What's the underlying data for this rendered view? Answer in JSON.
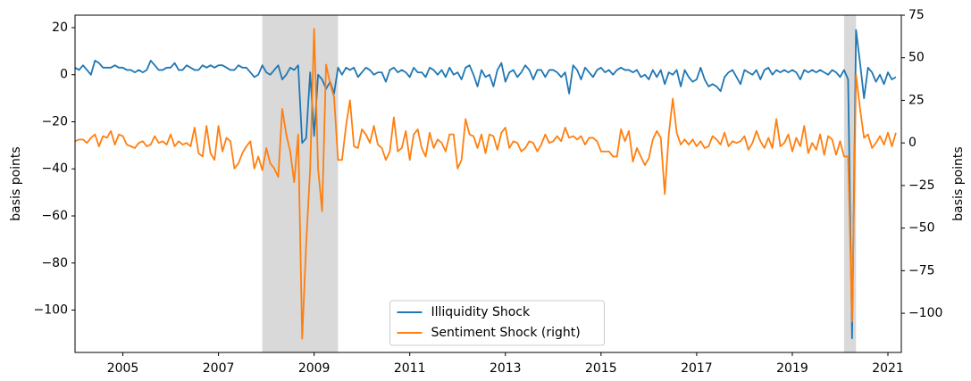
{
  "chart_data": {
    "type": "line",
    "ylabel": "basis points",
    "y2label": "basis points",
    "x": [
      2004.0,
      2004.083,
      2004.167,
      2004.25,
      2004.333,
      2004.417,
      2004.5,
      2004.583,
      2004.667,
      2004.75,
      2004.833,
      2004.917,
      2005.0,
      2005.083,
      2005.167,
      2005.25,
      2005.333,
      2005.417,
      2005.5,
      2005.583,
      2005.667,
      2005.75,
      2005.833,
      2005.917,
      2006.0,
      2006.083,
      2006.167,
      2006.25,
      2006.333,
      2006.417,
      2006.5,
      2006.583,
      2006.667,
      2006.75,
      2006.833,
      2006.917,
      2007.0,
      2007.083,
      2007.167,
      2007.25,
      2007.333,
      2007.417,
      2007.5,
      2007.583,
      2007.667,
      2007.75,
      2007.833,
      2007.917,
      2008.0,
      2008.083,
      2008.167,
      2008.25,
      2008.333,
      2008.417,
      2008.5,
      2008.583,
      2008.667,
      2008.75,
      2008.833,
      2008.917,
      2009.0,
      2009.083,
      2009.167,
      2009.25,
      2009.333,
      2009.417,
      2009.5,
      2009.583,
      2009.667,
      2009.75,
      2009.833,
      2009.917,
      2010.0,
      2010.083,
      2010.167,
      2010.25,
      2010.333,
      2010.417,
      2010.5,
      2010.583,
      2010.667,
      2010.75,
      2010.833,
      2010.917,
      2011.0,
      2011.083,
      2011.167,
      2011.25,
      2011.333,
      2011.417,
      2011.5,
      2011.583,
      2011.667,
      2011.75,
      2011.833,
      2011.917,
      2012.0,
      2012.083,
      2012.167,
      2012.25,
      2012.333,
      2012.417,
      2012.5,
      2012.583,
      2012.667,
      2012.75,
      2012.833,
      2012.917,
      2013.0,
      2013.083,
      2013.167,
      2013.25,
      2013.333,
      2013.417,
      2013.5,
      2013.583,
      2013.667,
      2013.75,
      2013.833,
      2013.917,
      2014.0,
      2014.083,
      2014.167,
      2014.25,
      2014.333,
      2014.417,
      2014.5,
      2014.583,
      2014.667,
      2014.75,
      2014.833,
      2014.917,
      2015.0,
      2015.083,
      2015.167,
      2015.25,
      2015.333,
      2015.417,
      2015.5,
      2015.583,
      2015.667,
      2015.75,
      2015.833,
      2015.917,
      2016.0,
      2016.083,
      2016.167,
      2016.25,
      2016.333,
      2016.417,
      2016.5,
      2016.583,
      2016.667,
      2016.75,
      2016.833,
      2016.917,
      2017.0,
      2017.083,
      2017.167,
      2017.25,
      2017.333,
      2017.417,
      2017.5,
      2017.583,
      2017.667,
      2017.75,
      2017.833,
      2017.917,
      2018.0,
      2018.083,
      2018.167,
      2018.25,
      2018.333,
      2018.417,
      2018.5,
      2018.583,
      2018.667,
      2018.75,
      2018.833,
      2018.917,
      2019.0,
      2019.083,
      2019.167,
      2019.25,
      2019.333,
      2019.417,
      2019.5,
      2019.583,
      2019.667,
      2019.75,
      2019.833,
      2019.917,
      2020.0,
      2020.083,
      2020.167,
      2020.25,
      2020.333,
      2020.417,
      2020.5,
      2020.583,
      2020.667,
      2020.75,
      2020.833,
      2020.917,
      2021.0,
      2021.083,
      2021.167
    ],
    "series": [
      {
        "name": "Illiquidity Shock",
        "color": "#1f77b4",
        "axis": "y",
        "values": [
          3,
          2,
          4,
          2,
          0,
          6,
          5,
          3,
          3,
          3,
          4,
          3,
          3,
          2,
          2,
          1,
          2,
          1,
          2,
          6,
          4,
          2,
          2,
          3,
          3,
          5,
          2,
          2,
          4,
          3,
          2,
          2,
          4,
          3,
          4,
          3,
          4,
          4,
          3,
          2,
          2,
          4,
          3,
          3,
          1,
          -1,
          0,
          4,
          1,
          0,
          2,
          4,
          -2,
          0,
          3,
          2,
          4,
          -29,
          -27,
          1,
          -26,
          0,
          -2,
          -6,
          -3,
          -8,
          3,
          0,
          3,
          2,
          3,
          -1,
          1,
          3,
          2,
          0,
          1,
          1,
          -3,
          2,
          3,
          1,
          2,
          1,
          -1,
          3,
          1,
          1,
          -1,
          3,
          2,
          0,
          2,
          -1,
          3,
          0,
          1,
          -2,
          3,
          4,
          0,
          -5,
          2,
          -1,
          0,
          -5,
          2,
          5,
          -3,
          1,
          2,
          -1,
          1,
          4,
          2,
          -2,
          2,
          2,
          -1,
          2,
          2,
          1,
          -1,
          1,
          -8,
          4,
          2,
          -2,
          3,
          1,
          -1,
          2,
          3,
          1,
          2,
          0,
          2,
          3,
          2,
          2,
          1,
          2,
          -1,
          0,
          -2,
          2,
          -1,
          2,
          -4,
          1,
          0,
          2,
          -5,
          2,
          -1,
          -3,
          -2,
          3,
          -2,
          -5,
          -4,
          -5,
          -7,
          -1,
          1,
          2,
          -1,
          -4,
          2,
          1,
          0,
          2,
          -2,
          2,
          3,
          0,
          2,
          1,
          2,
          1,
          2,
          1,
          -2,
          2,
          1,
          2,
          1,
          2,
          1,
          0,
          2,
          1,
          -1,
          2,
          -2,
          -112,
          19,
          5,
          -10,
          3,
          1,
          -3,
          0,
          -4,
          1,
          -2,
          -1
        ]
      },
      {
        "name": "Sentiment Shock (right)",
        "color": "#ff7f0e",
        "axis": "y2",
        "values": [
          1,
          2,
          2,
          0,
          3,
          5,
          -2,
          4,
          3,
          7,
          -1,
          5,
          4,
          -1,
          -2,
          -3,
          0,
          1,
          -2,
          -1,
          4,
          0,
          1,
          -1,
          5,
          -2,
          1,
          -1,
          0,
          -2,
          9,
          -6,
          -8,
          10,
          -6,
          -10,
          10,
          -5,
          3,
          1,
          -15,
          -12,
          -6,
          -2,
          1,
          -15,
          -8,
          -16,
          -3,
          -12,
          -15,
          -20,
          20,
          5,
          -5,
          -23,
          5,
          -115,
          -60,
          -15,
          67,
          -15,
          -40,
          46,
          35,
          27,
          -10,
          -10,
          10,
          25,
          -2,
          -3,
          8,
          5,
          0,
          10,
          -1,
          -3,
          -10,
          -5,
          15,
          -5,
          -3,
          7,
          -10,
          5,
          8,
          -3,
          -8,
          6,
          -3,
          2,
          0,
          -5,
          5,
          5,
          -15,
          -10,
          14,
          5,
          4,
          -3,
          5,
          -6,
          5,
          4,
          -4,
          6,
          9,
          -3,
          1,
          0,
          -5,
          -3,
          1,
          0,
          -5,
          -1,
          5,
          0,
          1,
          4,
          1,
          9,
          3,
          4,
          2,
          4,
          -1,
          3,
          3,
          1,
          -5,
          -5,
          -5,
          -8,
          -8,
          8,
          1,
          7,
          -11,
          -3,
          -8,
          -13,
          -9,
          2,
          7,
          3,
          -30,
          5,
          26,
          6,
          -1,
          2,
          -1,
          2,
          -2,
          1,
          -3,
          -2,
          4,
          2,
          -1,
          6,
          -2,
          1,
          0,
          1,
          4,
          -4,
          0,
          7,
          1,
          -3,
          3,
          -3,
          14,
          -2,
          0,
          5,
          -5,
          3,
          -2,
          10,
          -6,
          0,
          -4,
          5,
          -7,
          4,
          2,
          -7,
          1,
          -8,
          -8,
          -105,
          40,
          20,
          3,
          5,
          -3,
          0,
          4,
          -1,
          6,
          -2,
          6
        ]
      }
    ],
    "shaded_spans": [
      [
        2007.917,
        2009.5
      ],
      [
        2020.083,
        2020.333
      ]
    ],
    "xlim": [
      2004.0,
      2021.28
    ],
    "xticks": [
      2005,
      2007,
      2009,
      2011,
      2013,
      2015,
      2017,
      2019,
      2021
    ],
    "ylim": [
      -118,
      25.3
    ],
    "yticks": [
      20,
      0,
      {
        "value": -20,
        "label": "−20"
      },
      {
        "value": -40,
        "label": "−40"
      },
      {
        "value": -60,
        "label": "−60"
      },
      {
        "value": -80,
        "label": "−80"
      },
      {
        "value": -100,
        "label": "−100"
      }
    ],
    "y2lim": [
      -123,
      75
    ],
    "y2ticks": [
      75,
      50,
      25,
      0,
      {
        "value": -25,
        "label": "−25"
      },
      {
        "value": -50,
        "label": "−50"
      },
      {
        "value": -75,
        "label": "−75"
      },
      {
        "value": -100,
        "label": "−100"
      }
    ],
    "legend": "lower center"
  }
}
